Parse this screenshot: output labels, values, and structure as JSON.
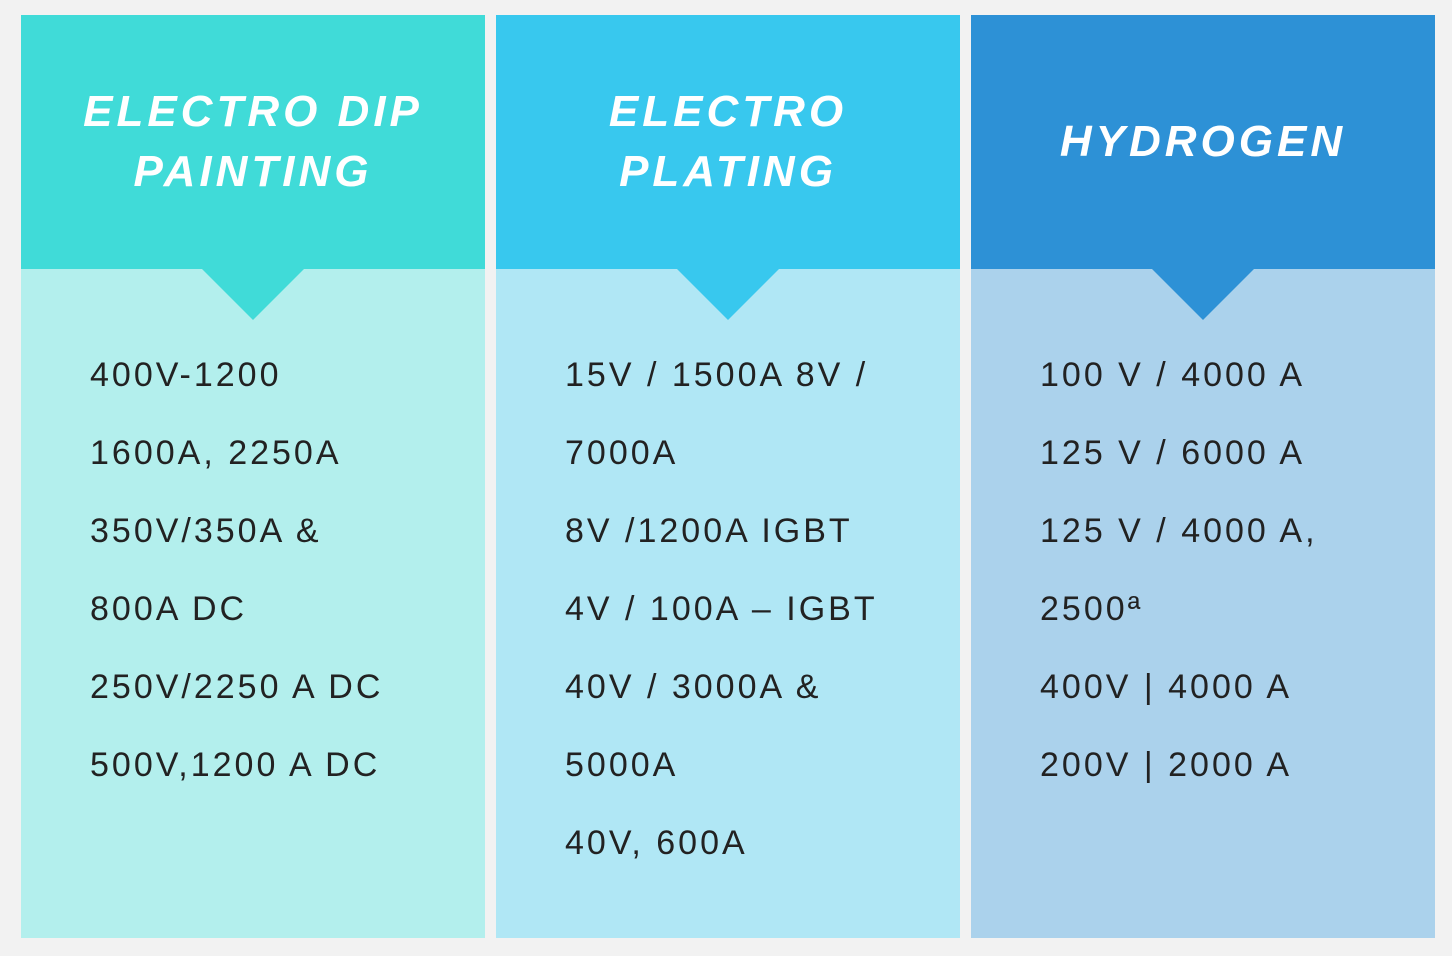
{
  "columns": [
    {
      "title_lines": [
        "ELECTRO DIP",
        "PAINTING"
      ],
      "lines": [
        "400V-1200",
        "1600A, 2250A",
        "350V/350A &",
        "800A DC",
        "250V/2250 A DC",
        "500V,1200 A DC"
      ]
    },
    {
      "title_lines": [
        "ELECTRO",
        "PLATING"
      ],
      "lines": [
        "15V / 1500A 8V /",
        "7000A",
        "8V /1200A IGBT",
        "4V / 100A – IGBT",
        "40V / 3000A &",
        "5000A",
        "40V, 600A"
      ]
    },
    {
      "title_lines": [
        "HYDROGEN"
      ],
      "lines": [
        "100 V / 4000 A",
        "125 V / 6000 A",
        "125 V / 4000 A,",
        "2500ª",
        "400V | 4000 A",
        "200V | 2000 A"
      ]
    }
  ]
}
